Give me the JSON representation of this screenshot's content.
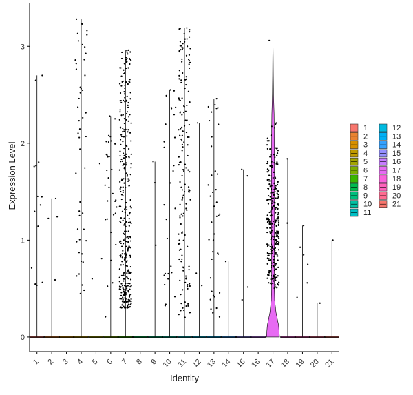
{
  "chart_data": {
    "type": "violin",
    "xlabel": "Identity",
    "ylabel": "Expression Level",
    "ylim": [
      -0.15,
      3.45
    ],
    "yticks": [
      0,
      1,
      2,
      3
    ],
    "categories": [
      "1",
      "2",
      "3",
      "4",
      "5",
      "6",
      "7",
      "8",
      "9",
      "10",
      "11",
      "12",
      "13",
      "14",
      "15",
      "16",
      "17",
      "18",
      "19",
      "20",
      "21"
    ],
    "colors": [
      "#F8766D",
      "#EA8331",
      "#D89000",
      "#C09B00",
      "#A3A500",
      "#7CAE00",
      "#39B600",
      "#00BB4E",
      "#00BF7D",
      "#00C1A3",
      "#00BFC4",
      "#00BAE0",
      "#00B0F6",
      "#35A2FF",
      "#9590FF",
      "#C77CFF",
      "#E76BF3",
      "#FA62DB",
      "#FF62BC",
      "#FF6C91",
      "#F8766D"
    ],
    "max_values": [
      2.7,
      1.43,
      0.0,
      3.28,
      1.79,
      2.28,
      2.96,
      0.0,
      1.81,
      2.55,
      3.19,
      2.21,
      2.46,
      0.78,
      1.73,
      0.0,
      3.06,
      1.84,
      1.15,
      0.35,
      1.0
    ],
    "nonzero_counts": [
      14,
      4,
      0,
      48,
      3,
      32,
      330,
      0,
      3,
      28,
      160,
      3,
      40,
      1,
      4,
      0,
      260,
      2,
      6,
      1,
      1
    ],
    "legend_position": "right",
    "legend_columns": 2
  }
}
